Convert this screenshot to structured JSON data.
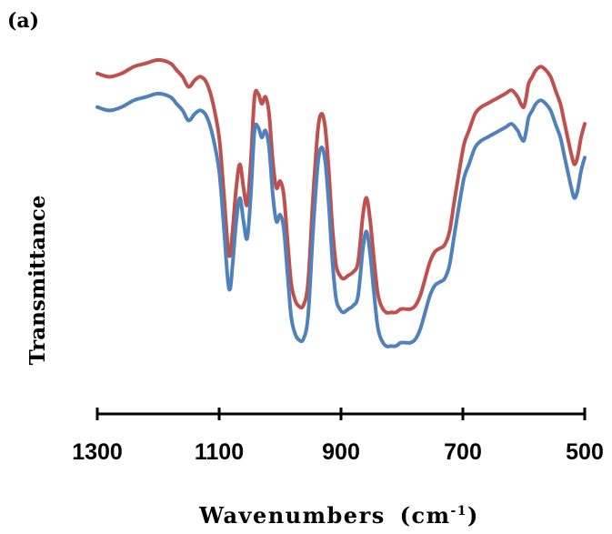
{
  "panel_label": "(a)",
  "colors": {
    "red_series": "#c0504d",
    "blue_series": "#4f81bd",
    "axis": "#000000"
  },
  "chart_data": {
    "type": "line",
    "xlabel": "Wavenumbers",
    "xlabel_unit": "(cm",
    "xlabel_unit_exp": "-1",
    "xlabel_unit_close": ")",
    "ylabel": "Transmittance",
    "xlim": [
      1300,
      500
    ],
    "x_reversed": true,
    "ylim": [
      0,
      1
    ],
    "y_ticks_shown": false,
    "x_ticks": [
      1300,
      1100,
      900,
      700,
      500
    ],
    "x_tick_labels": [
      "1300",
      "1100",
      "900",
      "700",
      "500"
    ],
    "grid": false,
    "legend": "none",
    "series": [
      {
        "color": "#c0504d",
        "x": [
          1300,
          1280,
          1260,
          1240,
          1220,
          1200,
          1180,
          1170,
          1160,
          1150,
          1140,
          1130,
          1120,
          1110,
          1100,
          1093,
          1086,
          1082,
          1078,
          1072,
          1066,
          1060,
          1054,
          1048,
          1042,
          1036,
          1030,
          1024,
          1018,
          1012,
          1006,
          1000,
          994,
          988,
          982,
          976,
          970,
          962,
          954,
          946,
          938,
          932,
          926,
          920,
          914,
          908,
          902,
          896,
          888,
          880,
          872,
          864,
          858,
          852,
          846,
          840,
          834,
          826,
          818,
          810,
          802,
          794,
          786,
          778,
          770,
          762,
          754,
          746,
          738,
          730,
          722,
          714,
          706,
          698,
          690,
          680,
          670,
          660,
          650,
          640,
          630,
          620,
          610,
          605,
          600,
          596,
          592,
          586,
          580,
          572,
          564,
          556,
          548,
          540,
          534,
          528,
          522,
          517,
          512,
          506,
          500
        ],
        "y": [
          0.89,
          0.88,
          0.89,
          0.91,
          0.92,
          0.93,
          0.92,
          0.9,
          0.88,
          0.85,
          0.87,
          0.88,
          0.86,
          0.8,
          0.7,
          0.55,
          0.38,
          0.35,
          0.42,
          0.55,
          0.62,
          0.55,
          0.5,
          0.63,
          0.82,
          0.83,
          0.8,
          0.82,
          0.77,
          0.63,
          0.55,
          0.57,
          0.53,
          0.4,
          0.27,
          0.22,
          0.2,
          0.2,
          0.27,
          0.52,
          0.72,
          0.77,
          0.73,
          0.6,
          0.43,
          0.32,
          0.29,
          0.28,
          0.29,
          0.3,
          0.33,
          0.47,
          0.52,
          0.45,
          0.34,
          0.24,
          0.2,
          0.18,
          0.18,
          0.18,
          0.19,
          0.19,
          0.19,
          0.2,
          0.23,
          0.28,
          0.33,
          0.36,
          0.37,
          0.38,
          0.42,
          0.51,
          0.6,
          0.68,
          0.72,
          0.77,
          0.79,
          0.8,
          0.81,
          0.82,
          0.83,
          0.84,
          0.82,
          0.8,
          0.79,
          0.82,
          0.86,
          0.88,
          0.9,
          0.91,
          0.9,
          0.88,
          0.84,
          0.8,
          0.75,
          0.7,
          0.65,
          0.62,
          0.64,
          0.7,
          0.74
        ]
      },
      {
        "color": "#4f81bd",
        "x": [
          1300,
          1280,
          1260,
          1240,
          1220,
          1200,
          1180,
          1170,
          1160,
          1150,
          1140,
          1130,
          1120,
          1110,
          1100,
          1093,
          1086,
          1082,
          1078,
          1072,
          1066,
          1060,
          1054,
          1048,
          1042,
          1036,
          1030,
          1024,
          1018,
          1012,
          1006,
          1000,
          994,
          988,
          982,
          976,
          970,
          962,
          954,
          946,
          938,
          932,
          926,
          920,
          914,
          908,
          902,
          896,
          888,
          880,
          872,
          864,
          858,
          852,
          846,
          840,
          834,
          826,
          818,
          810,
          802,
          794,
          786,
          778,
          770,
          762,
          754,
          746,
          738,
          730,
          722,
          714,
          706,
          698,
          690,
          680,
          670,
          660,
          650,
          640,
          630,
          620,
          610,
          605,
          600,
          596,
          592,
          586,
          580,
          572,
          564,
          556,
          548,
          540,
          534,
          528,
          522,
          517,
          512,
          506,
          500
        ],
        "y": [
          0.79,
          0.78,
          0.79,
          0.81,
          0.82,
          0.83,
          0.82,
          0.8,
          0.78,
          0.75,
          0.77,
          0.78,
          0.76,
          0.7,
          0.6,
          0.45,
          0.28,
          0.25,
          0.32,
          0.45,
          0.52,
          0.45,
          0.4,
          0.53,
          0.72,
          0.73,
          0.7,
          0.72,
          0.67,
          0.53,
          0.45,
          0.47,
          0.43,
          0.3,
          0.17,
          0.12,
          0.1,
          0.1,
          0.17,
          0.42,
          0.62,
          0.67,
          0.63,
          0.5,
          0.33,
          0.22,
          0.19,
          0.18,
          0.19,
          0.2,
          0.23,
          0.37,
          0.42,
          0.35,
          0.24,
          0.14,
          0.1,
          0.08,
          0.08,
          0.08,
          0.09,
          0.09,
          0.09,
          0.1,
          0.13,
          0.18,
          0.23,
          0.26,
          0.27,
          0.28,
          0.32,
          0.41,
          0.5,
          0.58,
          0.62,
          0.67,
          0.69,
          0.7,
          0.71,
          0.72,
          0.73,
          0.74,
          0.72,
          0.7,
          0.69,
          0.72,
          0.76,
          0.78,
          0.8,
          0.81,
          0.8,
          0.78,
          0.74,
          0.7,
          0.65,
          0.6,
          0.55,
          0.52,
          0.54,
          0.6,
          0.64
        ]
      }
    ]
  }
}
